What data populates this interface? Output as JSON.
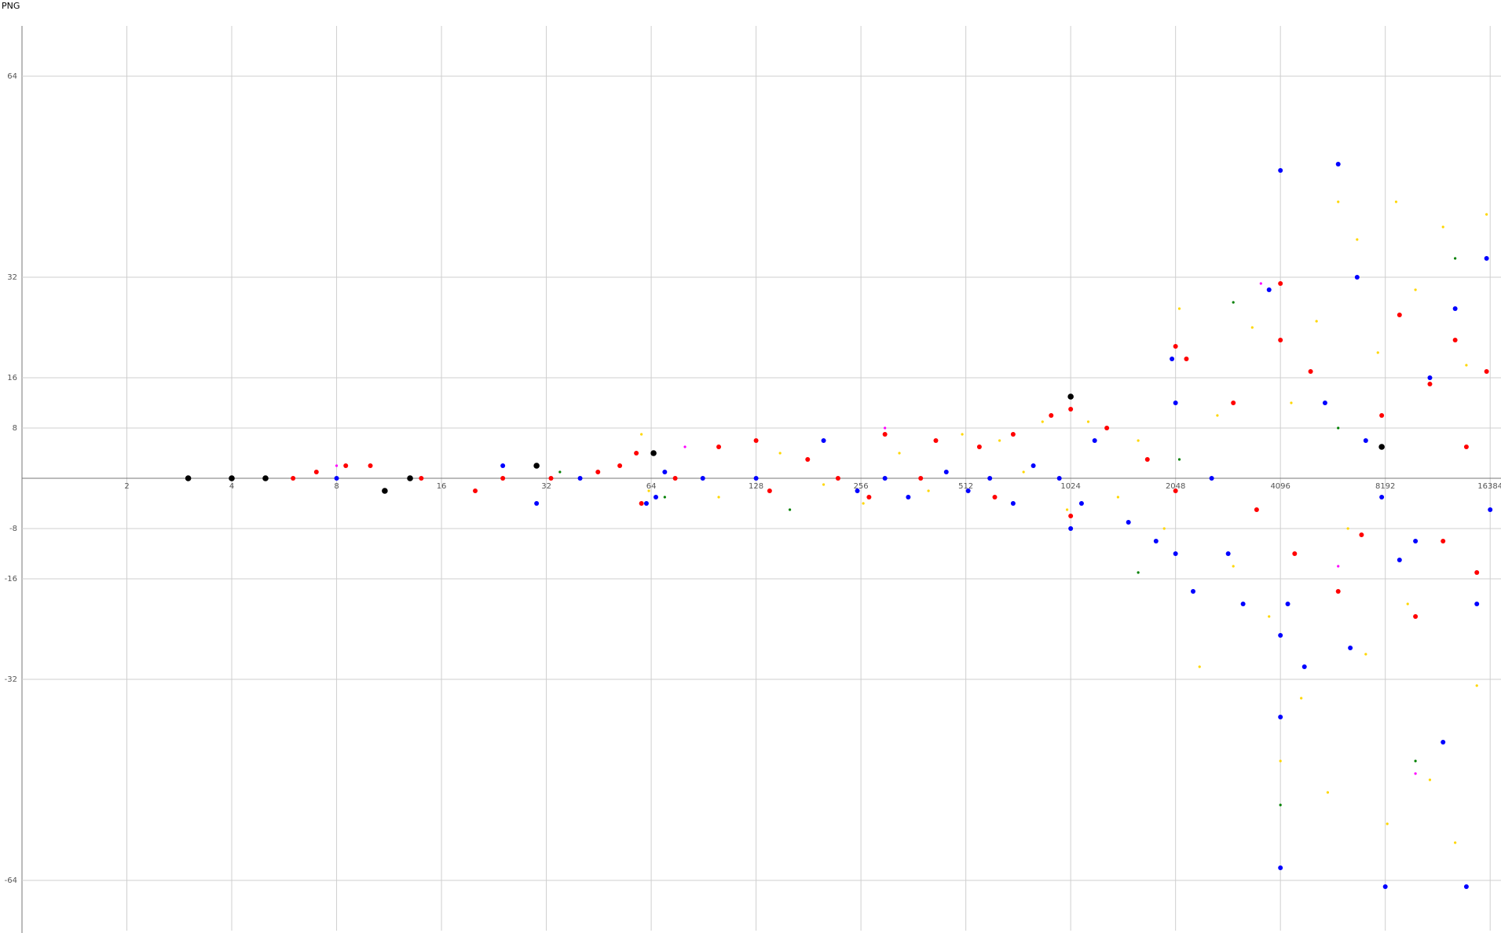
{
  "chart_data": {
    "type": "scatter",
    "title": "PNG",
    "xscale": "log",
    "grid": true,
    "xlim": [
      1,
      17600
    ],
    "ylim": [
      -72,
      72
    ],
    "xticks": [
      2,
      4,
      8,
      16,
      32,
      64,
      128,
      256,
      512,
      1024,
      2048,
      4096,
      8192,
      16384
    ],
    "yticks": [
      -64,
      -32,
      -16,
      -8,
      8,
      16,
      32,
      64
    ],
    "series": [
      {
        "color": "#ffd700",
        "size": 1.6,
        "x": [
          60,
          63,
          100,
          150,
          200,
          260,
          330,
          400,
          500,
          640,
          750,
          850,
          1000,
          1150,
          1400,
          1600,
          1900,
          2100,
          2400,
          2700,
          3000,
          3400,
          3800,
          4096,
          4400,
          4700,
          5200,
          5600,
          6000,
          6400,
          6800,
          7200,
          7800,
          8300,
          8800,
          9500,
          10000,
          11000,
          12000,
          13000,
          14000,
          15000,
          16000
        ],
        "values": [
          7,
          -2,
          -3,
          4,
          -1,
          -4,
          4,
          -2,
          7,
          6,
          1,
          9,
          -5,
          9,
          -3,
          6,
          -8,
          27,
          -30,
          10,
          -14,
          24,
          -22,
          -45,
          12,
          -35,
          25,
          -50,
          44,
          -8,
          38,
          -28,
          20,
          -55,
          44,
          -20,
          30,
          -48,
          40,
          -58,
          18,
          -33,
          42
        ]
      },
      {
        "color": "#008000",
        "size": 1.6,
        "x": [
          35,
          70,
          160,
          1600,
          2100,
          3000,
          4096,
          6000,
          10000,
          13000
        ],
        "values": [
          1,
          -3,
          -5,
          -15,
          3,
          28,
          -52,
          8,
          -45,
          35
        ]
      },
      {
        "color": "#ff00ff",
        "size": 1.6,
        "x": [
          8,
          80,
          300,
          3600,
          6000,
          10000
        ],
        "values": [
          2,
          5,
          8,
          31,
          -14,
          -47
        ]
      },
      {
        "color": "#ff0000",
        "size": 3,
        "x": [
          6,
          7,
          8.5,
          10,
          14,
          20,
          24,
          33,
          45,
          52,
          58,
          60,
          75,
          100,
          128,
          140,
          180,
          220,
          270,
          300,
          380,
          420,
          560,
          620,
          700,
          900,
          1024,
          1024,
          1300,
          1700,
          2048,
          2048,
          2200,
          3000,
          3500,
          4096,
          4096,
          4500,
          5000,
          6000,
          7000,
          8000,
          9000,
          10000,
          11000,
          12000,
          13000,
          14000,
          15000,
          16000
        ],
        "values": [
          0,
          1,
          2,
          2,
          0,
          -2,
          0,
          0,
          1,
          2,
          4,
          -4,
          0,
          5,
          6,
          -2,
          3,
          0,
          -3,
          7,
          0,
          6,
          5,
          -3,
          7,
          10,
          11,
          -6,
          8,
          3,
          21,
          -2,
          19,
          12,
          -5,
          31,
          22,
          -12,
          17,
          -18,
          -9,
          10,
          26,
          -22,
          15,
          -10,
          22,
          5,
          -15,
          17
        ]
      },
      {
        "color": "#0000ff",
        "size": 3,
        "x": [
          8,
          24,
          30,
          40,
          62,
          66,
          70,
          90,
          128,
          200,
          250,
          300,
          350,
          450,
          520,
          600,
          700,
          800,
          950,
          1024,
          1100,
          1200,
          1500,
          1800,
          2000,
          2048,
          2048,
          2300,
          2600,
          2900,
          3200,
          3800,
          4096,
          4096,
          4096,
          4096,
          4300,
          4800,
          5500,
          6000,
          6500,
          6800,
          7200,
          8000,
          8192,
          9000,
          10000,
          11000,
          12000,
          13000,
          14000,
          15000,
          16000,
          16384
        ],
        "values": [
          0,
          2,
          -4,
          0,
          -4,
          -3,
          1,
          0,
          0,
          6,
          -2,
          0,
          -3,
          1,
          -2,
          0,
          -4,
          2,
          0,
          -8,
          -4,
          6,
          -7,
          -10,
          19,
          12,
          -12,
          -18,
          0,
          -12,
          -20,
          30,
          49,
          -25,
          -38,
          -62,
          -20,
          -30,
          12,
          50,
          -27,
          32,
          6,
          -3,
          -65,
          -13,
          -10,
          16,
          -42,
          27,
          -65,
          -20,
          35,
          -5
        ]
      },
      {
        "color": "#000000",
        "size": 3.8,
        "x": [
          3,
          4,
          5,
          11,
          13,
          30,
          65,
          1024,
          8000
        ],
        "values": [
          0,
          0,
          0,
          -2,
          0,
          2,
          4,
          13,
          5
        ]
      }
    ]
  }
}
